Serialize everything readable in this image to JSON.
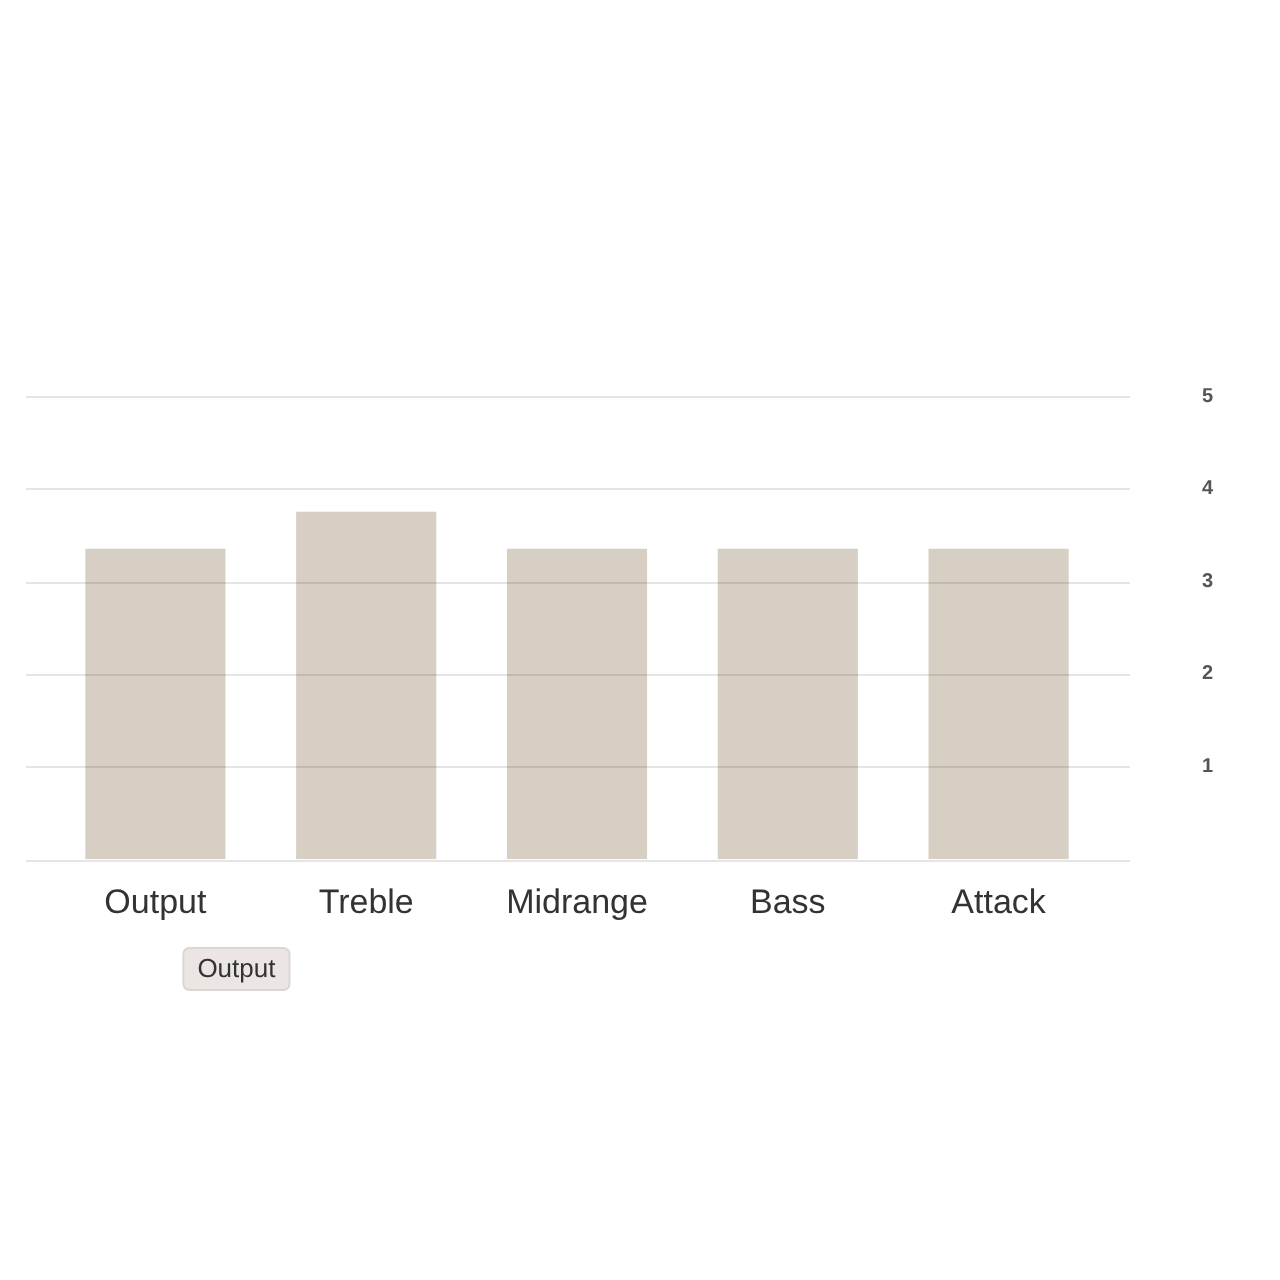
{
  "chart_data": {
    "type": "bar",
    "categories": [
      "Output",
      "Treble",
      "Midrange",
      "Bass",
      "Attack"
    ],
    "values": [
      3.35,
      3.75,
      3.35,
      3.35,
      3.35
    ],
    "color": "#d8cfc4",
    "ylim": [
      0,
      5
    ],
    "yticks": [
      {
        "value": 0,
        "label": null
      },
      1,
      2,
      3,
      4,
      5
    ],
    "grid": "y",
    "legend": false,
    "annotations": [
      "Output"
    ]
  }
}
